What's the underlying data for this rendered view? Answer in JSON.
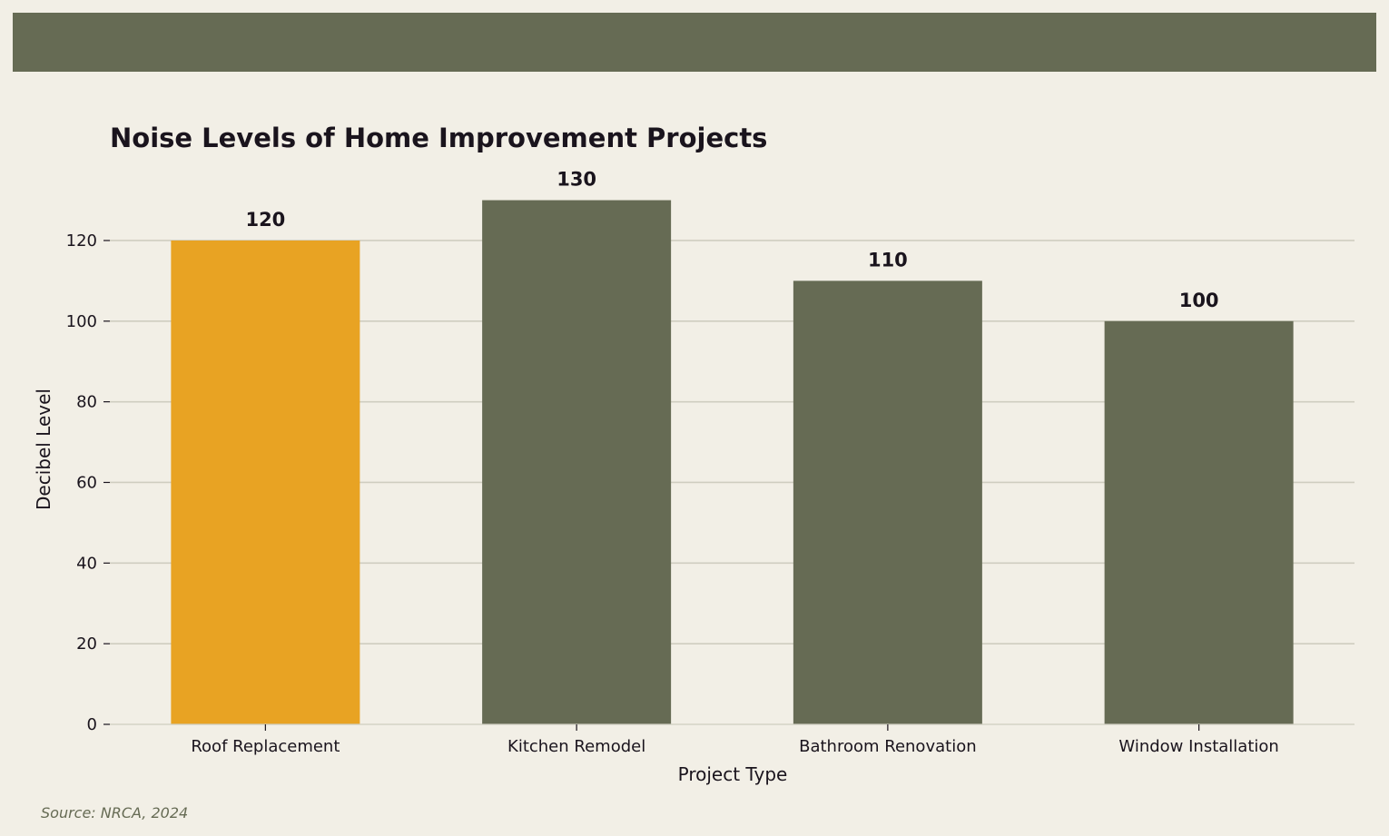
{
  "chart_data": {
    "type": "bar",
    "title": "Noise Levels of Home Improvement Projects",
    "xlabel": "Project Type",
    "ylabel": "Decibel Level",
    "categories": [
      "Roof Replacement",
      "Kitchen Remodel",
      "Bathroom Renovation",
      "Window Installation"
    ],
    "values": [
      120,
      130,
      110,
      100
    ],
    "data_labels": [
      "120",
      "130",
      "110",
      "100"
    ],
    "ylim": [
      0,
      132
    ],
    "yticks": [
      0,
      20,
      40,
      60,
      80,
      100,
      120
    ],
    "grid": true,
    "highlight_index": 0,
    "colors": {
      "highlight": "#e8a323",
      "bar": "#666b54",
      "grid": "#cfcdc0",
      "text": "#1a141d",
      "background": "#f2efe6",
      "band": "#666b54"
    }
  },
  "footer": {
    "source": "Source: NRCA, 2024"
  }
}
